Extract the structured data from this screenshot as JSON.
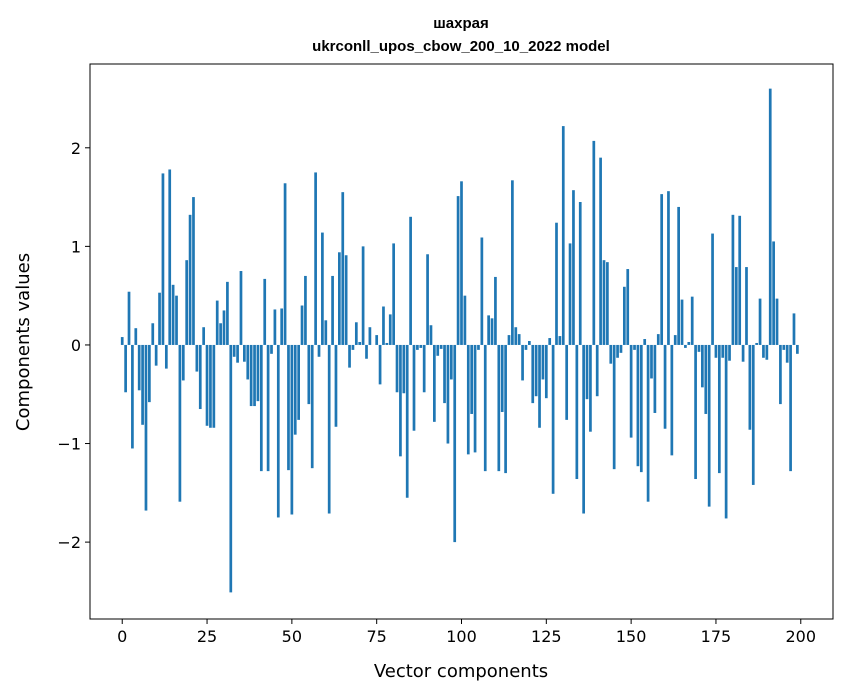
{
  "chart_data": {
    "type": "bar",
    "title": "шахрая",
    "subtitle": "ukrconll_upos_cbow_200_10_2022 model",
    "xlabel": "Vector components",
    "ylabel": "Components values",
    "xlim": [
      -9.5,
      209.5
    ],
    "ylim": [
      -2.78,
      2.85
    ],
    "xticks": [
      0,
      25,
      50,
      75,
      100,
      125,
      150,
      175,
      200
    ],
    "xtick_labels": [
      "0",
      "25",
      "50",
      "75",
      "100",
      "125",
      "150",
      "175",
      "200"
    ],
    "yticks": [
      -2,
      -1,
      0,
      1,
      2
    ],
    "ytick_labels": [
      "−2",
      "−1",
      "0",
      "1",
      "2"
    ],
    "bar_color": "#1f77b4",
    "grid": false,
    "x": [
      0,
      1,
      2,
      3,
      4,
      5,
      6,
      7,
      8,
      9,
      10,
      11,
      12,
      13,
      14,
      15,
      16,
      17,
      18,
      19,
      20,
      21,
      22,
      23,
      24,
      25,
      26,
      27,
      28,
      29,
      30,
      31,
      32,
      33,
      34,
      35,
      36,
      37,
      38,
      39,
      40,
      41,
      42,
      43,
      44,
      45,
      46,
      47,
      48,
      49,
      50,
      51,
      52,
      53,
      54,
      55,
      56,
      57,
      58,
      59,
      60,
      61,
      62,
      63,
      64,
      65,
      66,
      67,
      68,
      69,
      70,
      71,
      72,
      73,
      74,
      75,
      76,
      77,
      78,
      79,
      80,
      81,
      82,
      83,
      84,
      85,
      86,
      87,
      88,
      89,
      90,
      91,
      92,
      93,
      94,
      95,
      96,
      97,
      98,
      99,
      100,
      101,
      102,
      103,
      104,
      105,
      106,
      107,
      108,
      109,
      110,
      111,
      112,
      113,
      114,
      115,
      116,
      117,
      118,
      119,
      120,
      121,
      122,
      123,
      124,
      125,
      126,
      127,
      128,
      129,
      130,
      131,
      132,
      133,
      134,
      135,
      136,
      137,
      138,
      139,
      140,
      141,
      142,
      143,
      144,
      145,
      146,
      147,
      148,
      149,
      150,
      151,
      152,
      153,
      154,
      155,
      156,
      157,
      158,
      159,
      160,
      161,
      162,
      163,
      164,
      165,
      166,
      167,
      168,
      169,
      170,
      171,
      172,
      173,
      174,
      175,
      176,
      177,
      178,
      179,
      180,
      181,
      182,
      183,
      184,
      185,
      186,
      187,
      188,
      189,
      190,
      191,
      192,
      193,
      194,
      195,
      196,
      197,
      198,
      199
    ],
    "values": [
      0.08,
      -0.48,
      0.54,
      -1.05,
      0.17,
      -0.46,
      -0.81,
      -1.68,
      -0.58,
      0.22,
      -0.21,
      0.53,
      1.74,
      -0.24,
      1.78,
      0.61,
      0.5,
      -1.59,
      -0.36,
      0.86,
      1.32,
      1.5,
      -0.27,
      -0.65,
      0.18,
      -0.82,
      -0.84,
      -0.84,
      0.45,
      0.22,
      0.35,
      0.64,
      -2.51,
      -0.12,
      -0.18,
      0.75,
      -0.17,
      -0.35,
      -0.62,
      -0.62,
      -0.57,
      -1.28,
      0.67,
      -1.28,
      -0.09,
      0.36,
      -1.75,
      0.37,
      1.64,
      -1.27,
      -1.72,
      -0.91,
      -0.76,
      0.4,
      0.7,
      -0.6,
      -1.25,
      1.75,
      -0.12,
      1.14,
      0.25,
      -1.71,
      0.7,
      -0.83,
      0.94,
      1.55,
      0.91,
      -0.23,
      -0.05,
      0.23,
      0.03,
      1.0,
      -0.14,
      0.18,
      0.0,
      0.1,
      -0.4,
      0.39,
      0.02,
      0.31,
      1.03,
      -0.48,
      -1.13,
      -0.49,
      -1.55,
      1.3,
      -0.87,
      -0.05,
      -0.03,
      -0.48,
      0.92,
      0.2,
      -0.78,
      -0.11,
      -0.04,
      -0.59,
      -1.0,
      -0.35,
      -2.0,
      1.51,
      1.66,
      0.5,
      -1.11,
      -0.7,
      -1.09,
      -0.05,
      1.09,
      -1.28,
      0.3,
      0.27,
      0.69,
      -1.28,
      -0.68,
      -1.3,
      0.1,
      1.67,
      0.18,
      0.11,
      -0.36,
      -0.05,
      0.04,
      -0.59,
      -0.52,
      -0.84,
      -0.35,
      -0.54,
      0.07,
      -1.51,
      1.24,
      0.09,
      2.22,
      -0.76,
      1.03,
      1.57,
      -1.36,
      1.45,
      -1.71,
      -0.55,
      -0.88,
      2.07,
      -0.52,
      1.9,
      0.86,
      0.84,
      -0.19,
      -1.26,
      -0.13,
      -0.08,
      0.59,
      0.77,
      -0.94,
      -0.05,
      -1.23,
      -1.29,
      0.06,
      -1.59,
      -0.34,
      -0.69,
      0.11,
      1.53,
      -0.85,
      1.56,
      -1.12,
      0.1,
      1.4,
      0.46,
      -0.03,
      0.03,
      0.49,
      -1.36,
      -0.07,
      -0.43,
      -0.7,
      -1.64,
      1.13,
      -0.13,
      -1.3,
      -0.13,
      -1.76,
      -0.16,
      1.32,
      0.79,
      1.31,
      -0.17,
      0.79,
      -0.86,
      -1.42,
      0.02,
      0.47,
      -0.13,
      -0.15,
      2.6,
      1.05,
      0.47,
      -0.6,
      -0.05,
      -0.18,
      -1.28,
      0.32,
      -0.09
    ]
  }
}
